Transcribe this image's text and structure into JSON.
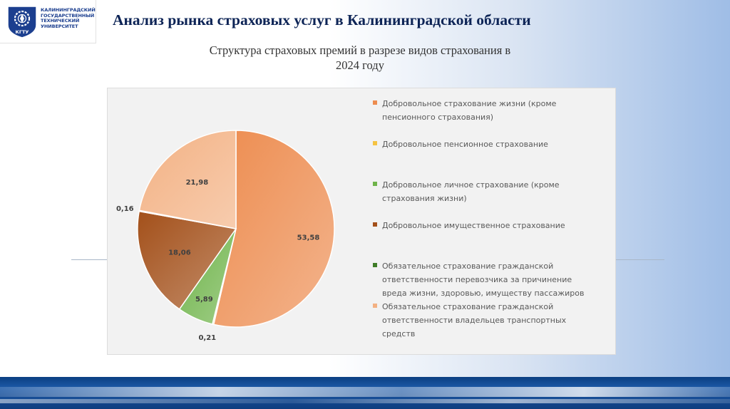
{
  "header": {
    "logo_lines": [
      "КАЛИНИНГРАДСКИЙ",
      "ГОСУДАРСТВЕННЫЙ",
      "ТЕХНИЧЕСКИЙ",
      "УНИВЕРСИТЕТ"
    ],
    "logo_badge_text": "КГТУ",
    "title": "Анализ рынка страховых услуг в Калининградской области"
  },
  "subtitle": {
    "line1": "Структура страховых премий в разрезе видов страхования в",
    "line2": "2024 году"
  },
  "colors": {
    "navy": "#0d2456",
    "brand_blue": "#1c3f8f",
    "panel": "#f2f2f2"
  },
  "chart_data": {
    "type": "pie",
    "title": "",
    "legend_position": "right",
    "slices": [
      {
        "label": "Добровольное страхование жизни (кроме пенсионного страхования)",
        "value": 53.58,
        "display": "53,58",
        "color": "#ed8c4f"
      },
      {
        "label": "Добровольное пенсионное страхование",
        "value": 0.21,
        "display": "0,21",
        "color": "#f5c342"
      },
      {
        "label": "Добровольное личное страхование (кроме страхования жизни)",
        "value": 5.89,
        "display": "5,89",
        "color": "#6fb44a"
      },
      {
        "label": "Добровольное имущественное страхование",
        "value": 18.06,
        "display": "18,06",
        "color": "#a3501a"
      },
      {
        "label": "Обязательное страхование гражданской ответственности перевозчика за причинение вреда жизни, здоровью, имуществу пассажиров",
        "value": 0.16,
        "display": "0,16",
        "color": "#3f7d28"
      },
      {
        "label": "Обязательное страхование гражданской ответственности владельцев транспортных средств",
        "value": 21.98,
        "display": "21,98",
        "color": "#f3b183"
      }
    ],
    "legend_lines": [
      [
        "Добровольное страхование жизни (кроме",
        "пенсионного страхования)"
      ],
      [
        "Добровольное пенсионное страхование"
      ],
      [
        "Добровольное личное страхование (кроме",
        "страхования жизни)"
      ],
      [
        "Добровольное имущественное страхование"
      ],
      [
        "Обязательное страхование гражданской",
        "ответственности перевозчика за причинение",
        "вреда жизни, здоровью, имуществу пассажиров"
      ],
      [
        "Обязательное страхование гражданской",
        "ответственности владельцев транспортных",
        "средств"
      ]
    ]
  }
}
